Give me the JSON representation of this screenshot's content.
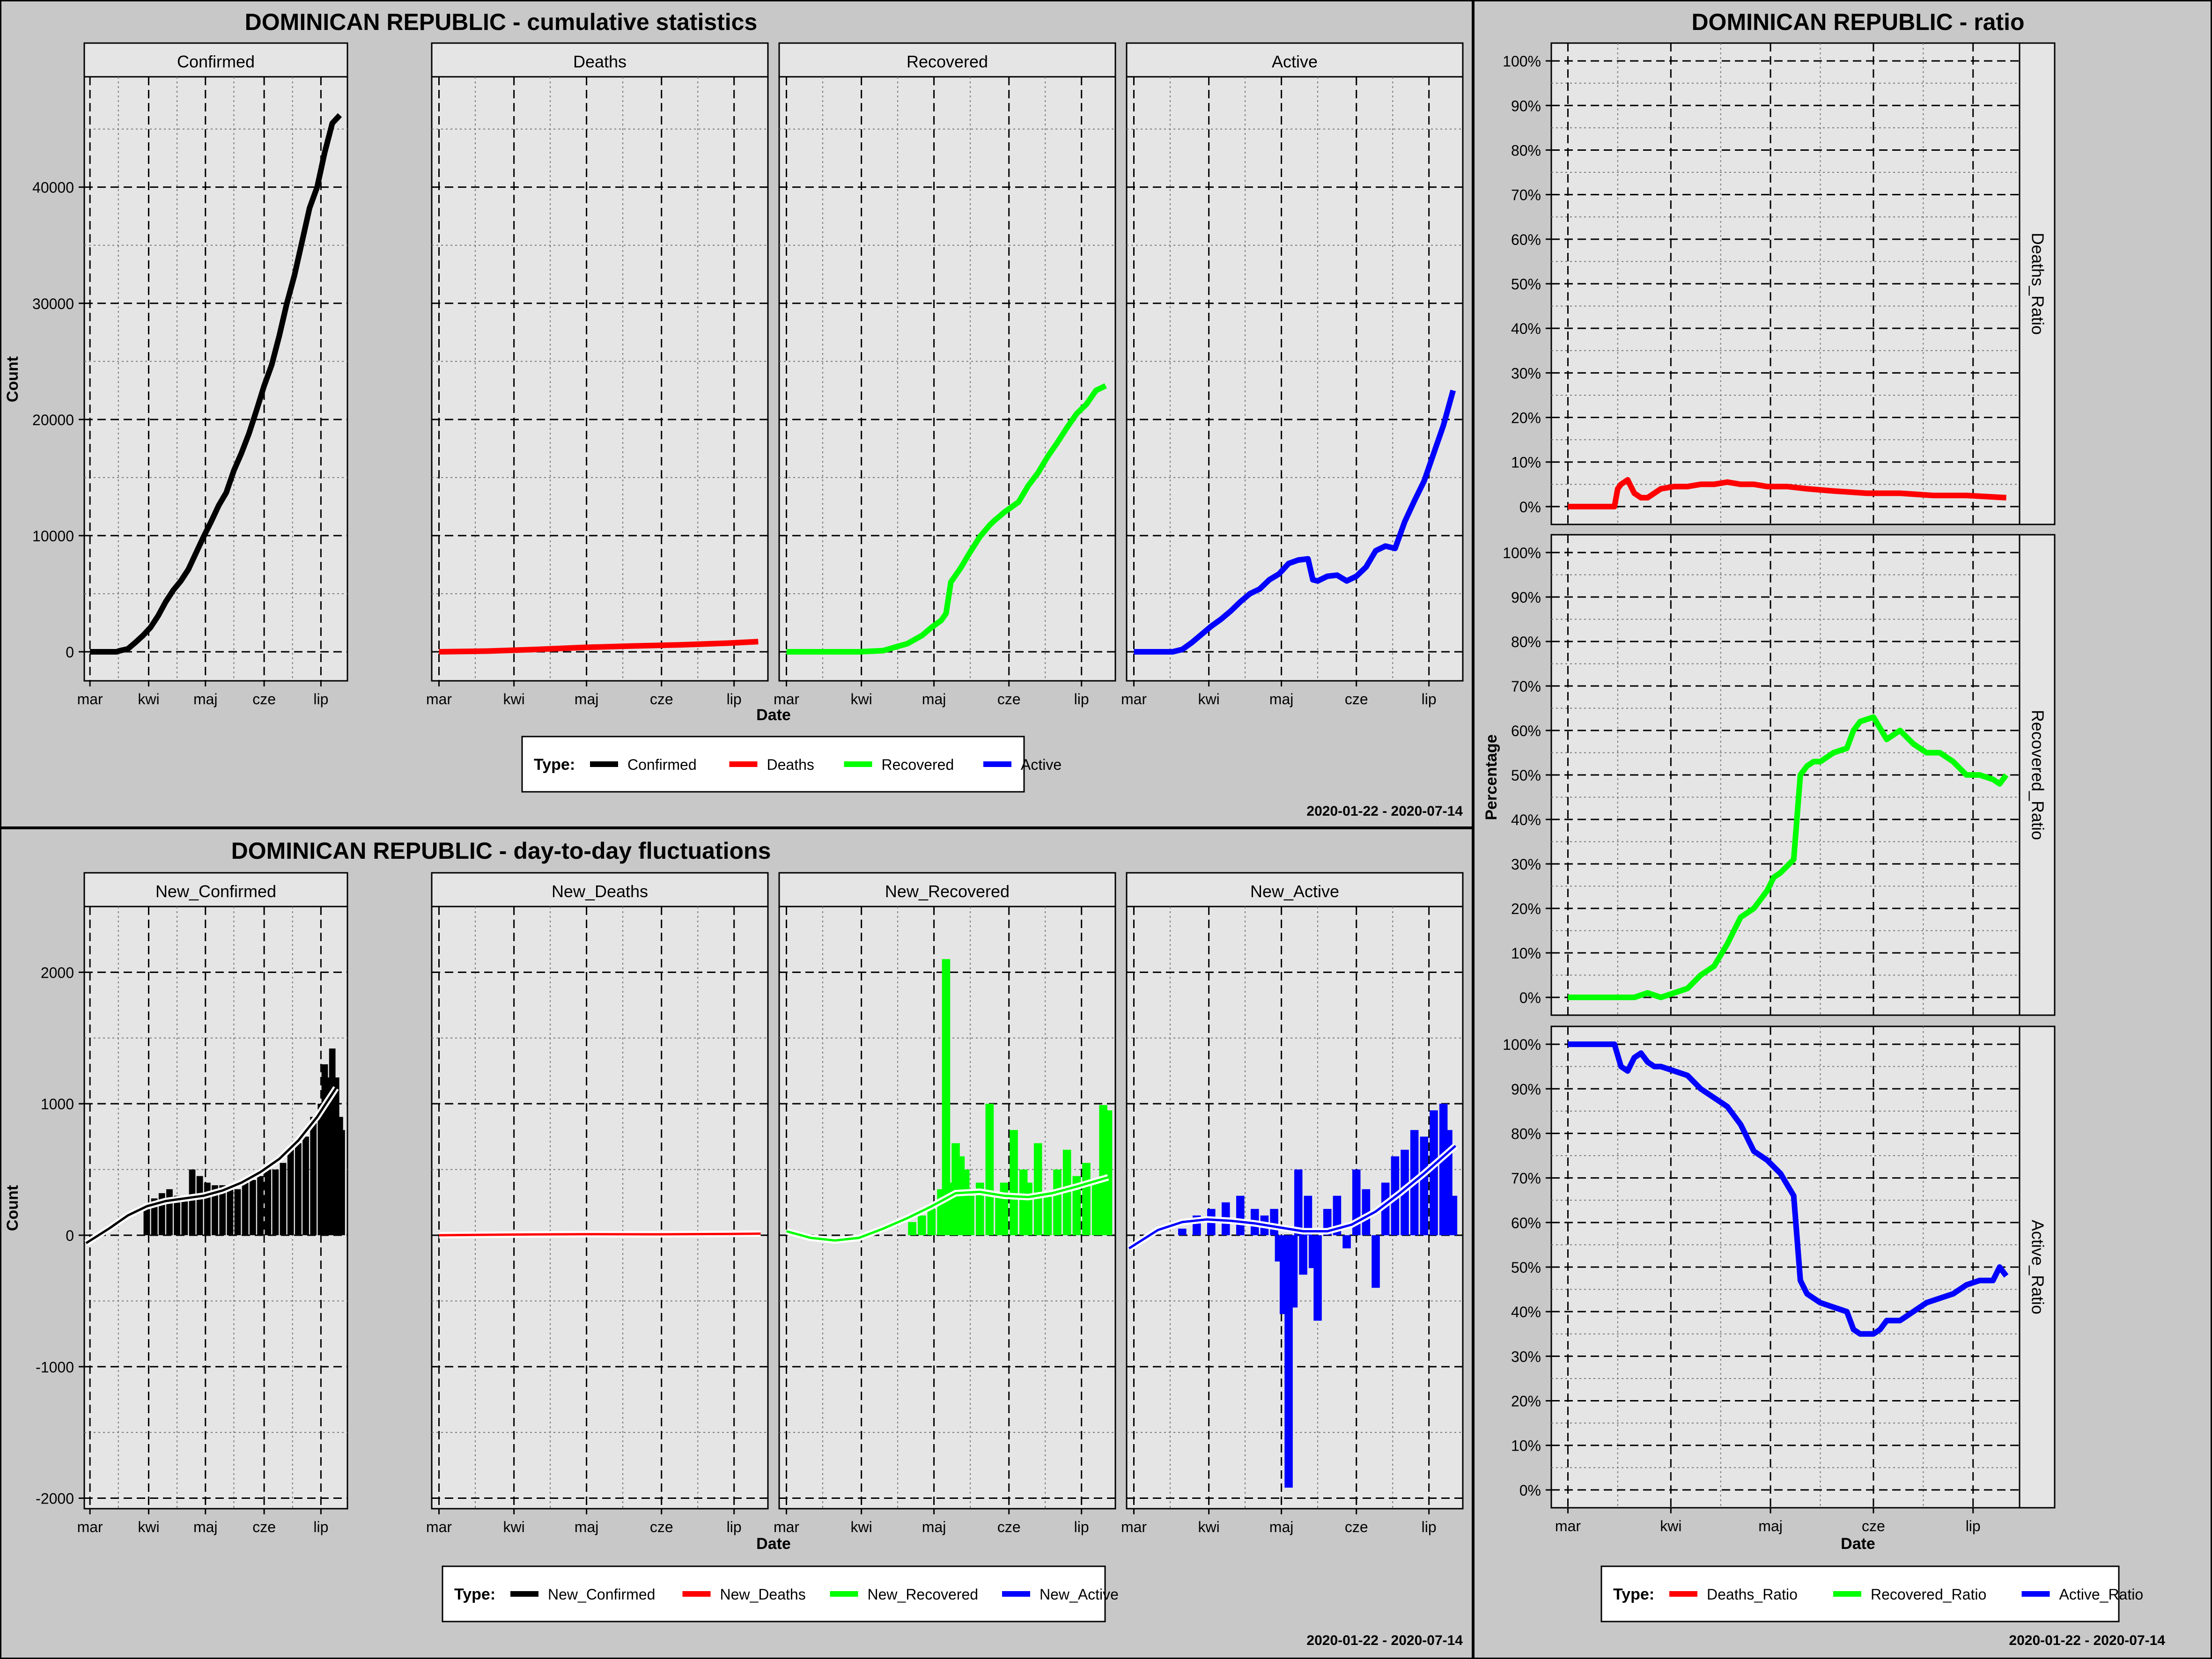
{
  "colors": {
    "confirmed": "#000000",
    "deaths": "#ff0000",
    "recovered": "#00ff00",
    "active": "#0000ff",
    "panel_bg": "#e5e5e5",
    "outer_bg": "#cccccc",
    "strip_bg": "#e5e5e5"
  },
  "months": [
    "mar",
    "kwi",
    "maj",
    "cze",
    "lip"
  ],
  "cumulative": {
    "title": "DOMINICAN REPUBLIC - cumulative statistics",
    "ylabel": "Count",
    "xlabel": "Date",
    "y_ticks": [
      "0",
      "10000",
      "20000",
      "30000",
      "40000"
    ],
    "legend_title": "Type:",
    "legend_items": [
      "Confirmed",
      "Deaths",
      "Recovered",
      "Active"
    ],
    "date_range": "2020-01-22 - 2020-07-14"
  },
  "daily": {
    "title": "DOMINICAN REPUBLIC - day-to-day fluctuations",
    "ylabel": "Count",
    "xlabel": "Date",
    "y_ticks": [
      "-2000",
      "-1000",
      "0",
      "1000",
      "2000"
    ],
    "legend_title": "Type:",
    "legend_items": [
      "New_Confirmed",
      "New_Deaths",
      "New_Recovered",
      "New_Active"
    ],
    "date_range": "2020-01-22 - 2020-07-14"
  },
  "ratio": {
    "title": "DOMINICAN REPUBLIC - ratio",
    "ylabel": "Percentage",
    "xlabel": "Date",
    "y_ticks": [
      "0%",
      "10%",
      "20%",
      "30%",
      "40%",
      "50%",
      "60%",
      "70%",
      "80%",
      "90%",
      "100%"
    ],
    "legend_title": "Type:",
    "legend_items": [
      "Deaths_Ratio",
      "Recovered_Ratio",
      "Active_Ratio"
    ],
    "date_range": "2020-01-22 - 2020-07-14"
  },
  "chart_data": [
    {
      "type": "line",
      "title": "DOMINICAN REPUBLIC - cumulative statistics",
      "xlabel": "Date",
      "ylabel": "Count",
      "ylim": [
        -2500,
        49500
      ],
      "x_domain_days": [
        -3,
        136
      ],
      "facets": [
        {
          "name": "Confirmed",
          "color": "#000000",
          "x": [
            0,
            5,
            10,
            14,
            16,
            20,
            24,
            28,
            32,
            36,
            40,
            44,
            48,
            52,
            56,
            60,
            64,
            68,
            72,
            76,
            80,
            84,
            88,
            92,
            96,
            100,
            104,
            108,
            112,
            116,
            120,
            124,
            128,
            132
          ],
          "y": [
            0,
            0,
            0,
            0,
            100,
            250,
            800,
            1400,
            2100,
            3100,
            4300,
            5300,
            6100,
            7100,
            8500,
            9900,
            11200,
            12600,
            13700,
            15600,
            17100,
            18800,
            20800,
            22900,
            24700,
            27200,
            30000,
            32400,
            35300,
            38200,
            40000,
            43000,
            45500,
            46200
          ]
        },
        {
          "name": "Deaths",
          "color": "#ff0000",
          "x": [
            0,
            20,
            40,
            60,
            80,
            100,
            120,
            132
          ],
          "y": [
            0,
            60,
            200,
            380,
            500,
            600,
            750,
            880
          ]
        },
        {
          "name": "Recovered",
          "color": "#00ff00",
          "x": [
            0,
            14,
            30,
            40,
            50,
            56,
            60,
            64,
            66,
            68,
            72,
            76,
            80,
            84,
            86,
            90,
            96,
            100,
            104,
            108,
            112,
            116,
            120,
            124,
            128,
            132
          ],
          "y": [
            0,
            0,
            0,
            100,
            700,
            1400,
            2100,
            2700,
            3300,
            6000,
            7200,
            8600,
            9900,
            10900,
            11300,
            12000,
            12900,
            14300,
            15400,
            16800,
            18000,
            19300,
            20500,
            21300,
            22500,
            22900
          ]
        },
        {
          "name": "Active",
          "color": "#0000ff",
          "x": [
            0,
            10,
            16,
            20,
            24,
            28,
            32,
            36,
            40,
            44,
            48,
            52,
            56,
            60,
            64,
            68,
            72,
            74,
            76,
            80,
            84,
            88,
            92,
            96,
            100,
            104,
            108,
            112,
            116,
            120,
            124,
            128,
            132
          ],
          "y": [
            0,
            0,
            0,
            200,
            800,
            1500,
            2200,
            2800,
            3500,
            4300,
            5000,
            5400,
            6200,
            6700,
            7600,
            7900,
            8000,
            6200,
            6100,
            6500,
            6600,
            6100,
            6500,
            7300,
            8700,
            9100,
            8900,
            11200,
            13000,
            14700,
            17100,
            19500,
            22500
          ]
        }
      ],
      "x_ticks": [
        "mar",
        "kwi",
        "maj",
        "cze",
        "lip"
      ]
    },
    {
      "type": "bar",
      "title": "DOMINICAN REPUBLIC - day-to-day fluctuations",
      "xlabel": "Date",
      "ylabel": "Count",
      "ylim": [
        -2080,
        2500
      ],
      "x_domain_days": [
        -3,
        136
      ],
      "facets": [
        {
          "name": "New_Confirmed",
          "color": "#000000",
          "smooth_x": [
            -2,
            10,
            20,
            30,
            40,
            50,
            60,
            70,
            80,
            90,
            100,
            110,
            120,
            130
          ],
          "smooth_y": [
            -60,
            50,
            150,
            220,
            260,
            280,
            300,
            340,
            400,
            480,
            580,
            720,
            900,
            1120
          ],
          "bar_days": [
            30,
            34,
            38,
            42,
            46,
            50,
            54,
            58,
            62,
            66,
            70,
            74,
            78,
            82,
            86,
            90,
            94,
            98,
            102,
            106,
            110,
            114,
            118,
            122,
            124,
            126,
            128,
            130,
            132,
            133
          ],
          "bar_values": [
            200,
            280,
            320,
            350,
            300,
            300,
            500,
            450,
            400,
            380,
            380,
            350,
            350,
            400,
            420,
            450,
            500,
            500,
            550,
            650,
            700,
            750,
            900,
            1000,
            1300,
            1200,
            1420,
            1200,
            900,
            800
          ]
        },
        {
          "name": "New_Deaths",
          "color": "#ff0000",
          "smooth_x": [
            0,
            30,
            60,
            90,
            120,
            133
          ],
          "smooth_y": [
            0,
            5,
            8,
            7,
            10,
            12
          ],
          "bar_days": [
            30,
            60,
            90,
            120
          ],
          "bar_values": [
            8,
            10,
            12,
            15
          ]
        },
        {
          "name": "New_Recovered",
          "color": "#00ff00",
          "smooth_x": [
            0,
            10,
            20,
            30,
            40,
            50,
            60,
            70,
            80,
            90,
            100,
            110,
            120,
            133
          ],
          "smooth_y": [
            30,
            -20,
            -40,
            -20,
            50,
            130,
            220,
            320,
            330,
            300,
            290,
            320,
            370,
            440
          ],
          "bar_days": [
            52,
            56,
            60,
            64,
            66,
            68,
            70,
            72,
            74,
            76,
            80,
            84,
            88,
            90,
            94,
            98,
            100,
            104,
            108,
            112,
            116,
            120,
            124,
            128,
            131,
            133
          ],
          "bar_values": [
            100,
            150,
            200,
            350,
            2100,
            400,
            700,
            600,
            500,
            300,
            400,
            1000,
            300,
            400,
            800,
            500,
            400,
            700,
            300,
            500,
            650,
            450,
            550,
            400,
            990,
            950
          ]
        },
        {
          "name": "New_Active",
          "color": "#0000ff",
          "smooth_x": [
            -2,
            10,
            20,
            30,
            40,
            50,
            60,
            70,
            80,
            90,
            100,
            110,
            120,
            133
          ],
          "smooth_y": [
            -100,
            40,
            100,
            120,
            110,
            90,
            60,
            30,
            30,
            80,
            180,
            320,
            470,
            680
          ],
          "bar_days": [
            20,
            26,
            32,
            38,
            44,
            50,
            54,
            58,
            60,
            62,
            64,
            66,
            68,
            70,
            72,
            74,
            76,
            80,
            84,
            88,
            92,
            96,
            100,
            104,
            108,
            112,
            116,
            120,
            124,
            128,
            130,
            132
          ],
          "bar_values": [
            50,
            150,
            200,
            250,
            300,
            200,
            150,
            200,
            -200,
            -600,
            -1920,
            -550,
            500,
            -300,
            300,
            -250,
            -650,
            200,
            300,
            -100,
            500,
            350,
            -400,
            400,
            600,
            650,
            800,
            750,
            950,
            1000,
            800,
            300
          ]
        }
      ],
      "x_ticks": [
        "mar",
        "kwi",
        "maj",
        "cze",
        "lip"
      ]
    },
    {
      "type": "line",
      "title": "DOMINICAN REPUBLIC - ratio",
      "xlabel": "Date",
      "ylabel": "Percentage",
      "ylim": [
        -4,
        104
      ],
      "x_domain_days": [
        -5,
        136
      ],
      "facets": [
        {
          "name": "Deaths_Ratio",
          "color": "#ff0000",
          "x": [
            0,
            10,
            14,
            15,
            16,
            18,
            20,
            22,
            24,
            26,
            28,
            32,
            36,
            40,
            44,
            48,
            52,
            56,
            60,
            66,
            72,
            80,
            90,
            100,
            110,
            120,
            132
          ],
          "y": [
            0,
            0,
            0,
            4,
            5,
            6,
            3,
            2,
            2,
            3,
            4,
            4.5,
            4.5,
            5,
            5,
            5.5,
            5,
            5,
            4.5,
            4.5,
            4,
            3.5,
            3,
            3,
            2.5,
            2.5,
            2
          ]
        },
        {
          "name": "Recovered_Ratio",
          "color": "#00ff00",
          "x": [
            0,
            14,
            20,
            24,
            28,
            32,
            36,
            40,
            44,
            48,
            52,
            56,
            60,
            62,
            64,
            68,
            70,
            72,
            74,
            76,
            80,
            84,
            86,
            88,
            92,
            96,
            100,
            104,
            108,
            112,
            116,
            120,
            124,
            128,
            130,
            132
          ],
          "y": [
            0,
            0,
            0,
            1,
            0,
            1,
            2,
            5,
            7,
            12,
            18,
            20,
            24,
            27,
            28,
            31,
            50,
            52,
            53,
            53,
            55,
            56,
            60,
            62,
            63,
            58,
            60,
            57,
            55,
            55,
            53,
            50,
            50,
            49,
            48,
            50
          ]
        },
        {
          "name": "Active_Ratio",
          "color": "#0000ff",
          "x": [
            0,
            14,
            16,
            18,
            20,
            22,
            24,
            26,
            28,
            32,
            36,
            40,
            44,
            48,
            52,
            56,
            60,
            64,
            68,
            70,
            72,
            74,
            76,
            80,
            84,
            86,
            88,
            92,
            94,
            96,
            100,
            104,
            108,
            112,
            116,
            120,
            124,
            128,
            130,
            132
          ],
          "y": [
            100,
            100,
            95,
            94,
            97,
            98,
            96,
            95,
            95,
            94,
            93,
            90,
            88,
            86,
            82,
            76,
            74,
            71,
            66,
            47,
            44,
            43,
            42,
            41,
            40,
            36,
            35,
            35,
            36,
            38,
            38,
            40,
            42,
            43,
            44,
            46,
            47,
            47,
            50,
            48
          ]
        }
      ],
      "x_ticks": [
        "mar",
        "kwi",
        "maj",
        "cze",
        "lip"
      ]
    }
  ]
}
